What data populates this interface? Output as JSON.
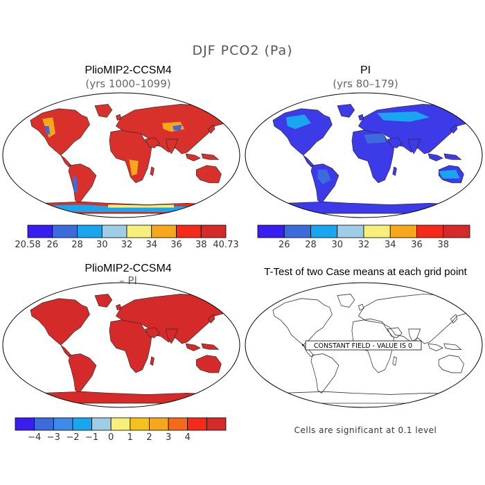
{
  "figure": {
    "title": "DJF PCO2 (Pa)"
  },
  "panels": {
    "top_left": {
      "title": "PlioMIP2-CCSM4",
      "subtitle": "(yrs 1000–1099)",
      "colorbar": {
        "colors": [
          "#3a1ef0",
          "#3d6bdc",
          "#1aa6ee",
          "#9fcde6",
          "#f7ef7a",
          "#f5a81c",
          "#f42a1a",
          "#d52a2a"
        ],
        "labels": [
          "20.58",
          "26",
          "28",
          "30",
          "32",
          "34",
          "36",
          "38",
          "40.73"
        ]
      }
    },
    "top_right": {
      "title": "PI",
      "subtitle": "(yrs 80–179)",
      "colorbar": {
        "colors": [
          "#3a1ef0",
          "#3d6bdc",
          "#1aa6ee",
          "#9fcde6",
          "#f7ef7a",
          "#f5a81c",
          "#f42a1a",
          "#d52a2a"
        ],
        "labels": [
          "26",
          "28",
          "30",
          "32",
          "34",
          "36",
          "38"
        ]
      }
    },
    "bottom_left": {
      "title": "PlioMIP2-CCSM4",
      "subtitle": "– PI",
      "colorbar": {
        "colors": [
          "#3a1ef0",
          "#3d6bdc",
          "#3d8ae8",
          "#1aa6ee",
          "#9fcde6",
          "#f7ef7a",
          "#f5c21c",
          "#f5a81c",
          "#f56a1a",
          "#f42a1a",
          "#d52a2a"
        ],
        "labels": [
          "−4",
          "−3",
          "−2",
          "−1",
          "0",
          "1",
          "2",
          "3",
          "4"
        ]
      }
    },
    "bottom_right": {
      "title": "T-Test of two Case means at each grid point",
      "annotation": "CONSTANT FIELD - VALUE IS 0",
      "footnote": "Cells are significant at 0.1 level"
    }
  }
}
